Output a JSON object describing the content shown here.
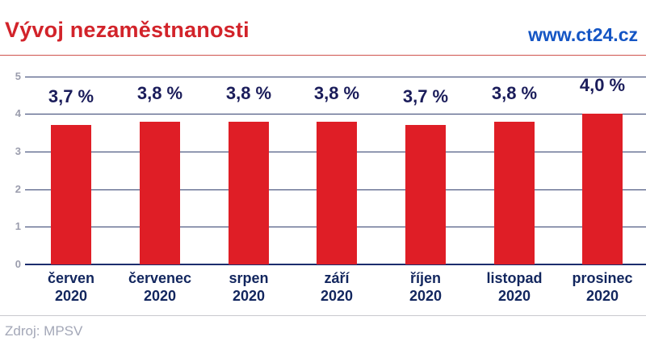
{
  "header": {
    "title": "Vývoj nezaměstnanosti",
    "site": "www.ct24.cz"
  },
  "source": {
    "label": "Zdroj: MPSV"
  },
  "colors": {
    "title_red": "#d2232a",
    "site_blue": "#1455c4",
    "bar_red": "#df1e26",
    "grid_navy": "#32406f",
    "axis_navy": "#1c2d6e",
    "value_navy": "#1a1c5a",
    "category_navy": "#12265e",
    "tick_gray": "#9b9dad",
    "source_gray": "#a3a7b7",
    "header_rule_red": "#cf534d",
    "footer_rule_gray": "#c9c9ce"
  },
  "chart_data": {
    "type": "bar",
    "title": "Vývoj nezaměstnanosti",
    "xlabel": "",
    "ylabel": "",
    "ylim": [
      0,
      5
    ],
    "yticks": [
      0,
      1,
      2,
      3,
      4,
      5
    ],
    "grid": true,
    "legend": false,
    "categories": [
      {
        "month": "červen",
        "year": "2020"
      },
      {
        "month": "červenec",
        "year": "2020"
      },
      {
        "month": "srpen",
        "year": "2020"
      },
      {
        "month": "září",
        "year": "2020"
      },
      {
        "month": "říjen",
        "year": "2020"
      },
      {
        "month": "listopad",
        "year": "2020"
      },
      {
        "month": "prosinec",
        "year": "2020"
      }
    ],
    "values": [
      3.7,
      3.8,
      3.8,
      3.8,
      3.7,
      3.8,
      4.0
    ],
    "value_labels": [
      "3,7 %",
      "3,8 %",
      "3,8 %",
      "3,8 %",
      "3,7 %",
      "3,8 %",
      "4,0 %"
    ]
  }
}
